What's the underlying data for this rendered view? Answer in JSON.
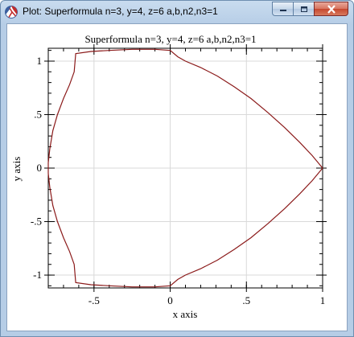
{
  "window": {
    "title": "Plot: Superformula n=3, y=4, z=6 a,b,n2,n3=1",
    "app_icon": "racket-logo-icon",
    "controls": [
      "minimize-icon",
      "maximize-icon",
      "close-icon"
    ]
  },
  "chart_data": {
    "type": "line",
    "title": "Superformula n=3, y=4, z=6 a,b,n2,n3=1",
    "xlabel": "x axis",
    "ylabel": "y axis",
    "xlim": [
      -0.8,
      1.0
    ],
    "ylim": [
      -1.12,
      1.12
    ],
    "x_ticks": [
      {
        "v": -0.5,
        "label": "-.5"
      },
      {
        "v": 0,
        "label": "0"
      },
      {
        "v": 0.5,
        "label": ".5"
      },
      {
        "v": 1,
        "label": "1"
      }
    ],
    "y_ticks": [
      {
        "v": -1,
        "label": "-1"
      },
      {
        "v": -0.5,
        "label": "-.5"
      },
      {
        "v": 0,
        "label": "0"
      },
      {
        "v": 0.5,
        "label": ".5"
      },
      {
        "v": 1,
        "label": "1"
      }
    ],
    "series": [
      {
        "color": "#8b1a1a",
        "x": [
          1.0,
          0.93,
          0.85,
          0.75,
          0.64,
          0.53,
          0.42,
          0.31,
          0.2,
          0.1,
          0.05,
          0.0,
          -0.1,
          -0.25,
          -0.4,
          -0.52,
          -0.62,
          -0.63,
          -0.66,
          -0.7,
          -0.74,
          -0.77,
          -0.79,
          -0.8,
          -0.8,
          -0.79,
          -0.77,
          -0.74,
          -0.7,
          -0.66,
          -0.63,
          -0.62,
          -0.52,
          -0.4,
          -0.25,
          -0.1,
          0.0,
          0.05,
          0.1,
          0.2,
          0.31,
          0.42,
          0.53,
          0.64,
          0.75,
          0.85,
          0.93,
          1.0
        ],
        "y": [
          0.0,
          0.12,
          0.24,
          0.38,
          0.52,
          0.65,
          0.76,
          0.86,
          0.94,
          1.0,
          1.04,
          1.1,
          1.11,
          1.11,
          1.1,
          1.09,
          1.07,
          0.9,
          0.78,
          0.65,
          0.5,
          0.35,
          0.18,
          0.05,
          -0.05,
          -0.18,
          -0.35,
          -0.5,
          -0.65,
          -0.78,
          -0.9,
          -1.07,
          -1.09,
          -1.1,
          -1.11,
          -1.11,
          -1.1,
          -1.04,
          -1.0,
          -0.94,
          -0.86,
          -0.76,
          -0.65,
          -0.52,
          -0.38,
          -0.24,
          -0.12,
          0.0
        ]
      }
    ]
  }
}
